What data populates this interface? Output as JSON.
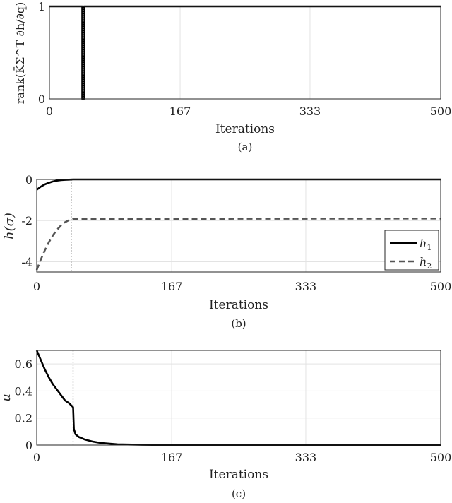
{
  "chart_data": [
    {
      "type": "line",
      "panel": "(a)",
      "ylabel": "rank(K̄Σ^T ∂h/∂q)",
      "xlabel": "Iterations",
      "caption": "(a)",
      "xlim": [
        0,
        500
      ],
      "ylim": [
        0,
        1
      ],
      "xticks": [
        "0",
        "167",
        "333",
        "500"
      ],
      "yticks": [
        "0",
        "1"
      ],
      "marker_iteration": 43,
      "grid": true,
      "series": [
        {
          "style": "solid",
          "color": "#000000",
          "points": [
            [
              0,
              1
            ],
            [
              42,
              1
            ],
            [
              42,
              0
            ],
            [
              44,
              0
            ],
            [
              44,
              1
            ],
            [
              500,
              1
            ]
          ]
        }
      ]
    },
    {
      "type": "line",
      "panel": "(b)",
      "ylabel": "h(σ)",
      "xlabel": "Iterations",
      "caption": "(b)",
      "xlim": [
        0,
        500
      ],
      "ylim": [
        -4.5,
        0
      ],
      "xticks": [
        "0",
        "167",
        "333",
        "500"
      ],
      "yticks": [
        "0",
        "-2",
        "-4"
      ],
      "marker_iteration": 43,
      "legend_position": "bottom-right",
      "grid": true,
      "series": [
        {
          "name": "h1",
          "label_main": "h",
          "label_sub": "1",
          "style": "solid",
          "color": "#000000",
          "points": [
            [
              0,
              -0.5
            ],
            [
              5,
              -0.35
            ],
            [
              10,
              -0.24
            ],
            [
              15,
              -0.16
            ],
            [
              20,
              -0.1
            ],
            [
              25,
              -0.06
            ],
            [
              30,
              -0.035
            ],
            [
              35,
              -0.02
            ],
            [
              40,
              -0.01
            ],
            [
              45,
              0
            ],
            [
              500,
              0
            ]
          ]
        },
        {
          "name": "h2",
          "label_main": "h",
          "label_sub": "2",
          "style": "dashed",
          "color": "#555555",
          "points": [
            [
              0,
              -4.4
            ],
            [
              5,
              -3.9
            ],
            [
              10,
              -3.45
            ],
            [
              15,
              -3.05
            ],
            [
              20,
              -2.72
            ],
            [
              25,
              -2.45
            ],
            [
              30,
              -2.24
            ],
            [
              35,
              -2.08
            ],
            [
              40,
              -1.98
            ],
            [
              45,
              -1.92
            ],
            [
              500,
              -1.9
            ]
          ]
        }
      ]
    },
    {
      "type": "line",
      "panel": "(c)",
      "ylabel": "u",
      "xlabel": "Iterations",
      "caption": "(c)",
      "xlim": [
        0,
        500
      ],
      "ylim": [
        0,
        0.7
      ],
      "xticks": [
        "0",
        "167",
        "333",
        "500"
      ],
      "yticks": [
        "0",
        "0.2",
        "0.4",
        "0.6"
      ],
      "marker_iteration": 45,
      "grid": true,
      "series": [
        {
          "style": "solid",
          "color": "#000000",
          "points": [
            [
              0,
              0.7
            ],
            [
              5,
              0.63
            ],
            [
              10,
              0.56
            ],
            [
              15,
              0.5
            ],
            [
              20,
              0.45
            ],
            [
              25,
              0.41
            ],
            [
              30,
              0.37
            ],
            [
              35,
              0.33
            ],
            [
              40,
              0.31
            ],
            [
              45,
              0.28
            ],
            [
              46,
              0.12
            ],
            [
              48,
              0.08
            ],
            [
              52,
              0.06
            ],
            [
              60,
              0.04
            ],
            [
              70,
              0.025
            ],
            [
              80,
              0.015
            ],
            [
              100,
              0.006
            ],
            [
              130,
              0.002
            ],
            [
              170,
              0
            ],
            [
              500,
              0
            ]
          ]
        }
      ]
    }
  ]
}
